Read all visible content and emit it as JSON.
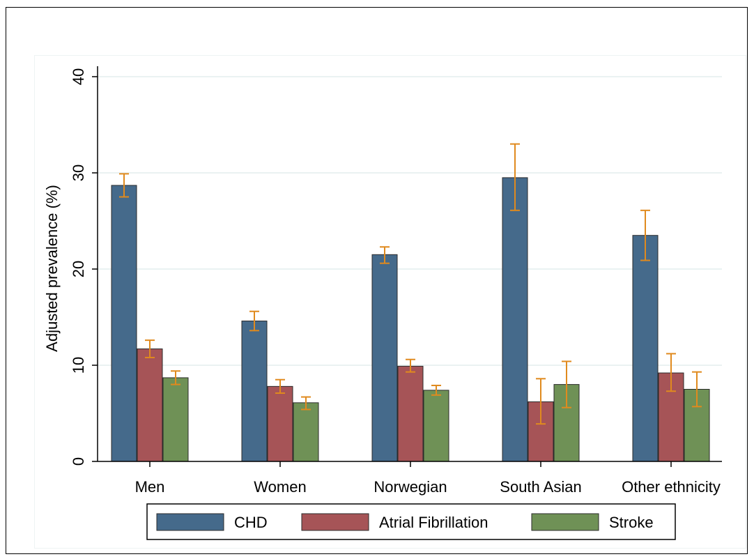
{
  "chart_data": {
    "type": "bar",
    "title": "",
    "xlabel": "",
    "ylabel": "Adjusted prevalence (%)",
    "ylim": [
      0,
      40
    ],
    "yticks": [
      0,
      10,
      20,
      30,
      40
    ],
    "grid": true,
    "legend_position": "bottom",
    "categories": [
      "Men",
      "Women",
      "Norwegian",
      "South Asian",
      "Other ethnicity"
    ],
    "series": [
      {
        "name": "CHD",
        "color": "#456a8b",
        "values": [
          28.7,
          14.6,
          21.5,
          29.5,
          23.5
        ],
        "ci_low": [
          27.5,
          13.6,
          20.6,
          26.1,
          20.9
        ],
        "ci_high": [
          29.9,
          15.6,
          22.3,
          33.0,
          26.1
        ]
      },
      {
        "name": "Atrial Fibrillation",
        "color": "#a65457",
        "values": [
          11.7,
          7.8,
          9.9,
          6.2,
          9.2
        ],
        "ci_low": [
          10.8,
          7.1,
          9.3,
          3.9,
          7.3
        ],
        "ci_high": [
          12.6,
          8.5,
          10.6,
          8.6,
          11.2
        ]
      },
      {
        "name": "Stroke",
        "color": "#6f9156",
        "values": [
          8.7,
          6.1,
          7.4,
          8.0,
          7.5
        ],
        "ci_low": [
          8.0,
          5.4,
          6.9,
          5.6,
          5.7
        ],
        "ci_high": [
          9.4,
          6.7,
          7.9,
          10.4,
          9.3
        ]
      }
    ],
    "error_bar_color": "#e08a1e"
  }
}
